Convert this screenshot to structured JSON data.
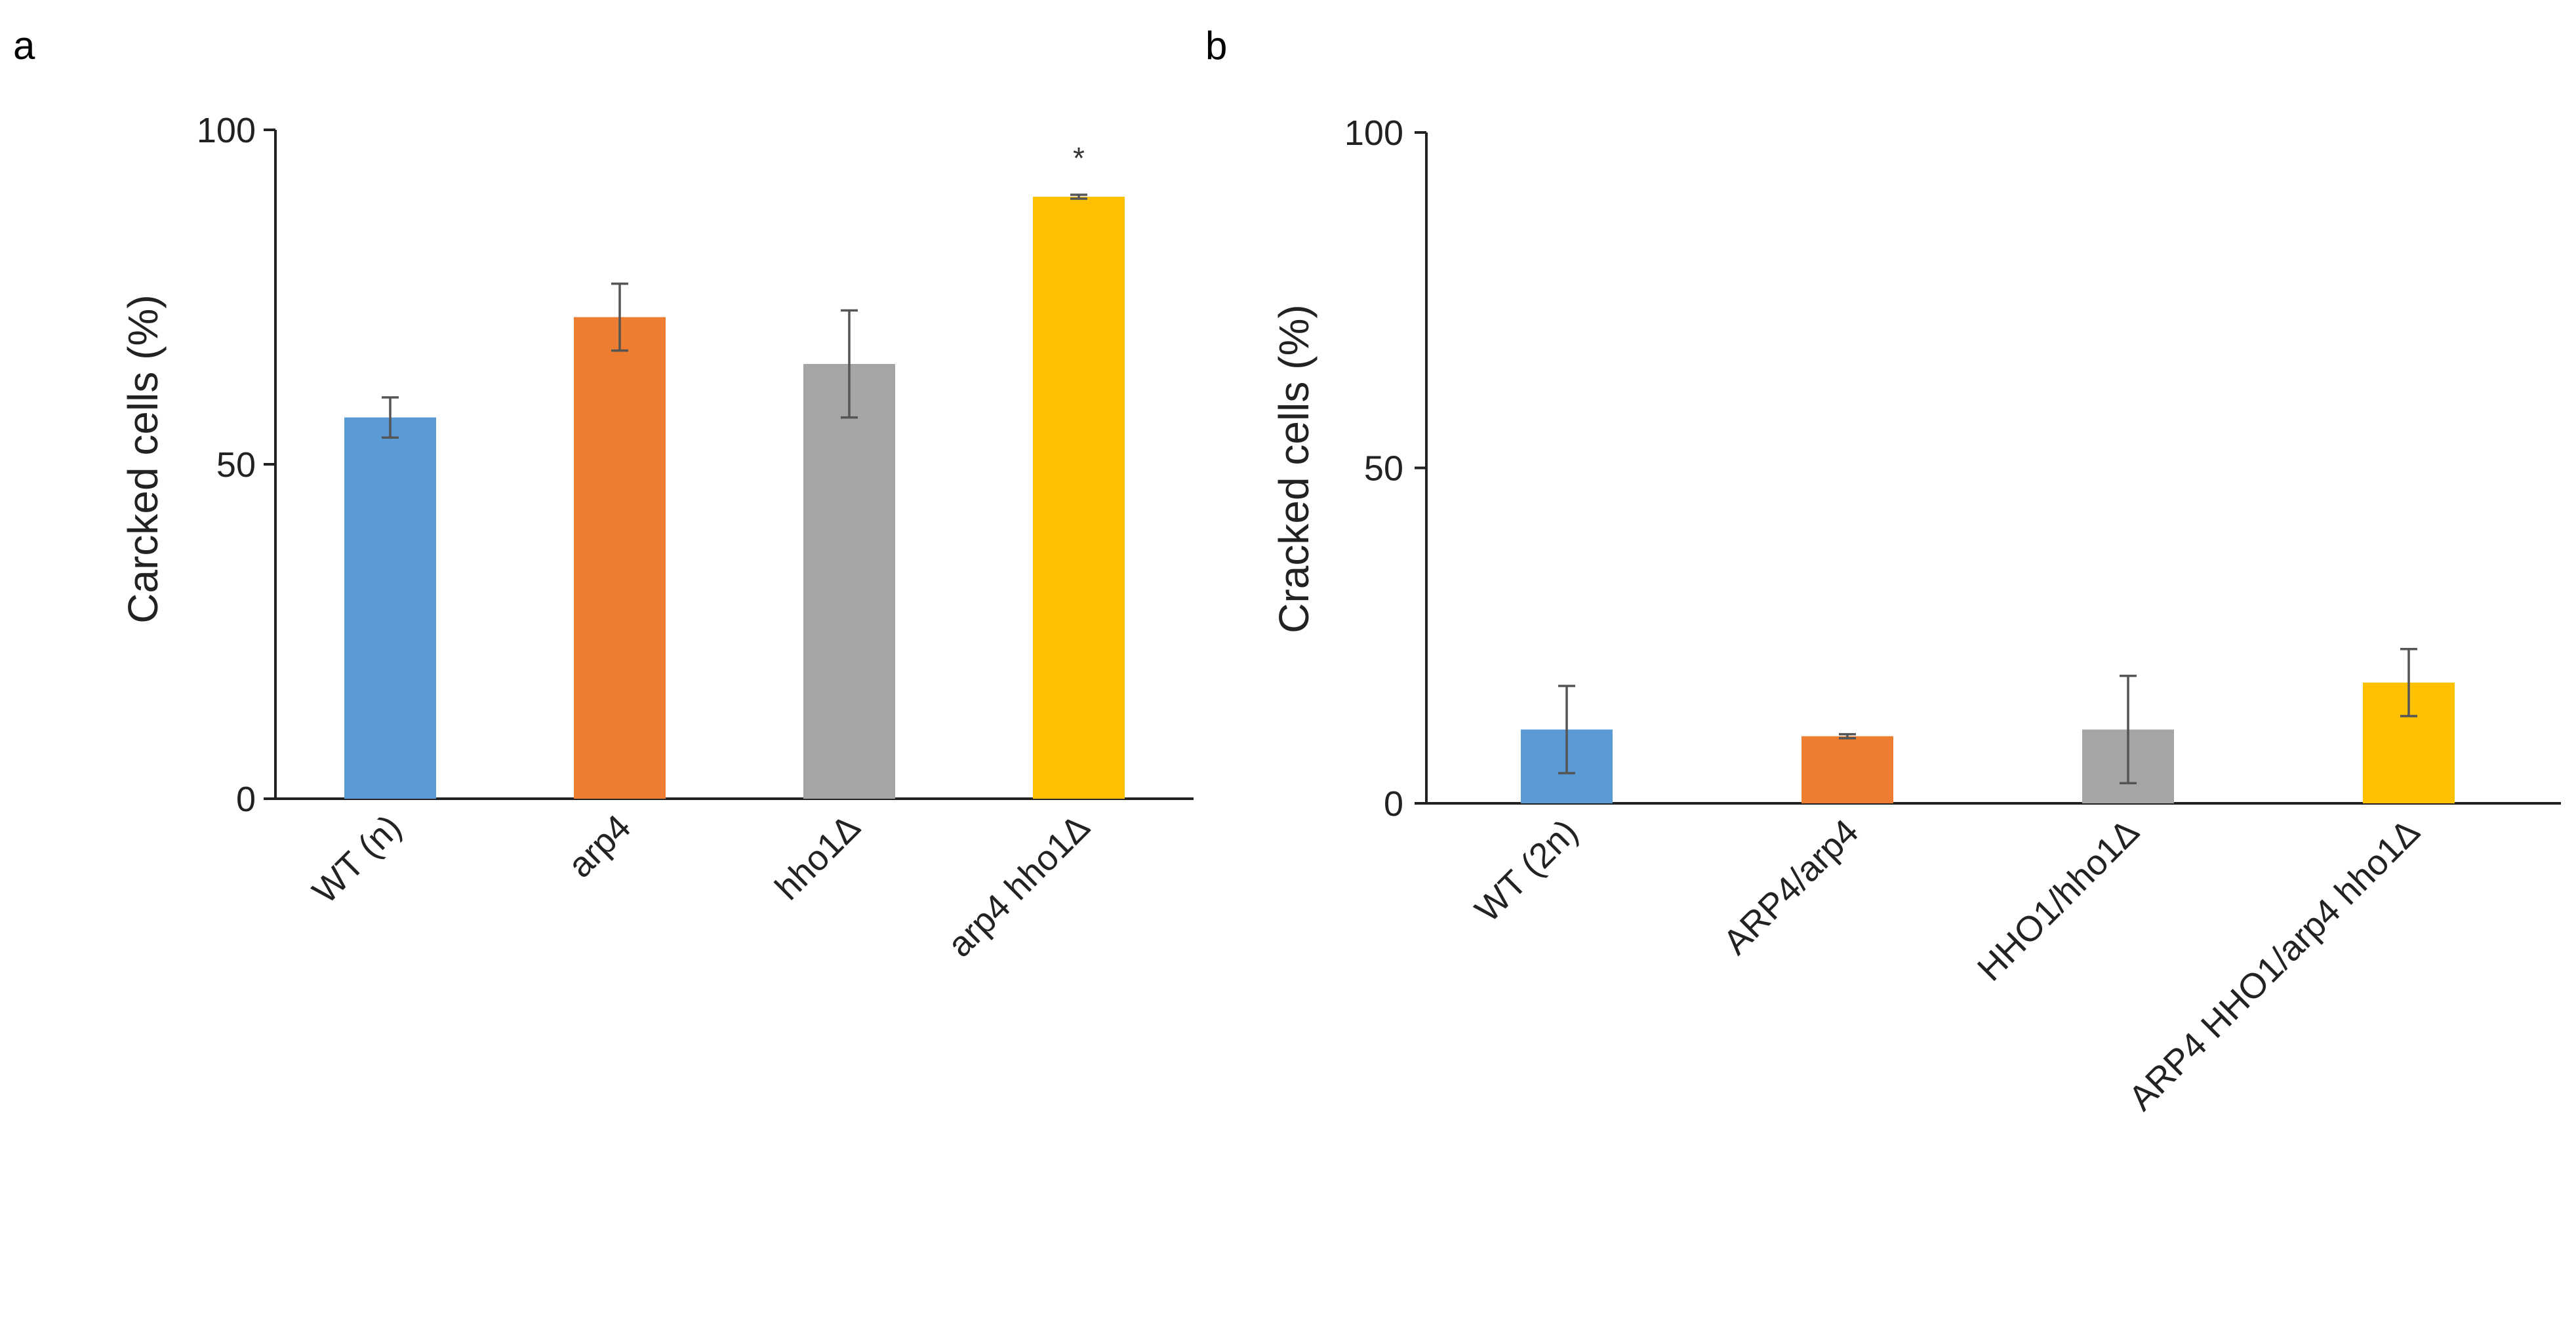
{
  "chart_data": [
    {
      "panel": "a",
      "type": "bar",
      "title": "",
      "xlabel": "",
      "ylabel": "Carcked cells (%)",
      "ylim": [
        0,
        100
      ],
      "yticks": [
        "0",
        "50",
        "100"
      ],
      "categories": [
        "WT (n)",
        "arp4",
        "hho1Δ",
        "arp4 hho1Δ"
      ],
      "values": [
        57,
        72,
        65,
        90
      ],
      "errors": [
        3,
        5,
        8,
        0.3
      ],
      "colors": [
        "#5B9BD5",
        "#ED7D31",
        "#A5A5A5",
        "#FFC000"
      ],
      "annotations": [
        {
          "category_index": 3,
          "text": "*"
        }
      ]
    },
    {
      "panel": "b",
      "type": "bar",
      "title": "",
      "xlabel": "",
      "ylabel": "Cracked cells (%)",
      "ylim": [
        0,
        100
      ],
      "yticks": [
        "0",
        "50",
        "100"
      ],
      "categories": [
        "WT (2n)",
        "ARP4/arp4",
        "HHO1/hho1Δ",
        "ARP4 HHO1/arp4 hho1Δ"
      ],
      "values": [
        11,
        10,
        11,
        18
      ],
      "errors": [
        6.5,
        0.3,
        8,
        5
      ],
      "colors": [
        "#5B9BD5",
        "#ED7D31",
        "#A5A5A5",
        "#FFC000"
      ],
      "annotations": []
    }
  ]
}
